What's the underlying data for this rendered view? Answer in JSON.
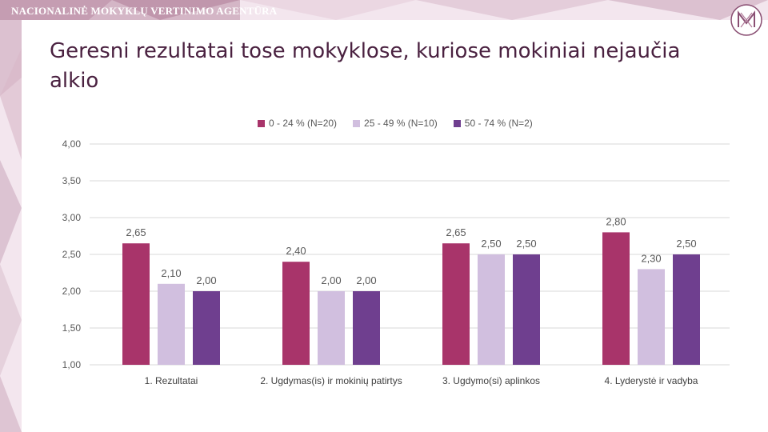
{
  "header": {
    "agency_name": "NACIONALINĖ MOKYKLŲ VERTINIMO AGENTŪRA",
    "logo_icon": "nmva-logo-icon"
  },
  "page": {
    "title": "Geresni rezultatai tose mokyklose, kuriose mokiniai nejaučia alkio"
  },
  "colors": {
    "series": [
      "#a8346a",
      "#d1bfdf",
      "#6f3f8f"
    ],
    "title": "#4a2140",
    "grid": "#d9d9d9",
    "label": "#595959"
  },
  "chart_data": {
    "type": "bar",
    "categories": [
      "1. Rezultatai",
      "2. Ugdymas(is) ir mokinių patirtys",
      "3. Ugdymo(si) aplinkos",
      "4. Lyderystė ir vadyba"
    ],
    "series": [
      {
        "name": "0 - 24 % (N=20)",
        "values": [
          2.65,
          2.4,
          2.65,
          2.8
        ],
        "labels": [
          "2,65",
          "2,40",
          "2,65",
          "2,80"
        ]
      },
      {
        "name": "25 - 49 % (N=10)",
        "values": [
          2.1,
          2.0,
          2.5,
          2.3
        ],
        "labels": [
          "2,10",
          "2,00",
          "2,50",
          "2,30"
        ]
      },
      {
        "name": "50 - 74 % (N=2)",
        "values": [
          2.0,
          2.0,
          2.5,
          2.5
        ],
        "labels": [
          "2,00",
          "2,00",
          "2,50",
          "2,50"
        ]
      }
    ],
    "ylim": [
      1.0,
      4.0
    ],
    "yticks": [
      1.0,
      1.5,
      2.0,
      2.5,
      3.0,
      3.5,
      4.0
    ],
    "ytick_labels": [
      "1,00",
      "1,50",
      "2,00",
      "2,50",
      "3,00",
      "3,50",
      "4,00"
    ],
    "legend_position": "top",
    "grid": true
  }
}
